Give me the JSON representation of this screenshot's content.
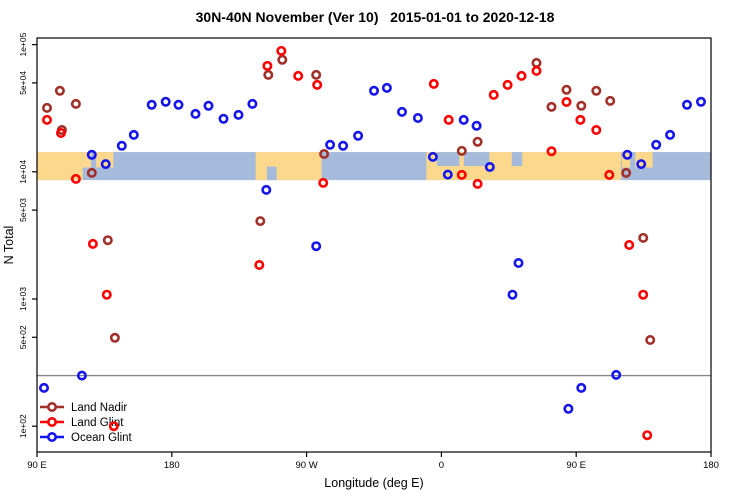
{
  "title": "30N-40N November (Ver 10)   2015-01-01 to 2020-12-18",
  "legend": {
    "items": [
      {
        "label": "Land Nadir",
        "color": "#A03028"
      },
      {
        "label": "Land Glint",
        "color": "#FF0000"
      },
      {
        "label": "Ocean Glint",
        "color": "#1414EE"
      }
    ]
  },
  "chart_data": {
    "type": "scatter",
    "title": "30N-40N November (Ver 10)   2015-01-01 to 2020-12-18",
    "xlabel": "Longitude (deg E)",
    "ylabel": "N Total",
    "grid": false,
    "legend_position": "bottom-left",
    "marker": "open-circle",
    "x_axis": {
      "range": [
        90,
        540
      ],
      "ticks": [
        90,
        180,
        270,
        360,
        450,
        540
      ],
      "tick_labels": [
        "90 E",
        "180",
        "90 W",
        "0",
        "90 E",
        "180"
      ]
    },
    "y_axis": {
      "scale": "log",
      "range": [
        63,
        113000
      ],
      "ticks": [
        100000,
        50000,
        10000,
        5000,
        1000,
        500,
        100
      ],
      "tick_labels": [
        "1e+05",
        "5e+04",
        "1e+04",
        "5e+03",
        "1e+03",
        "5e+02",
        "1e+02"
      ]
    },
    "reference_line": {
      "value": 250,
      "color": "#858585"
    },
    "map_strip": {
      "ocean_color": "#A6BBDB",
      "land_color": "#FBD88C",
      "value_band": [
        8600,
        14300
      ],
      "land_segments": [
        {
          "from": 90,
          "to": 120.5,
          "extent": "full"
        },
        {
          "from": 120.5,
          "to": 126,
          "extent": "top"
        },
        {
          "from": 129.5,
          "to": 141,
          "extent": "top"
        },
        {
          "from": 236,
          "to": 280,
          "extent": "full"
        },
        {
          "from": 350,
          "to": 480,
          "extent": "full"
        },
        {
          "from": 480.5,
          "to": 486,
          "extent": "top"
        },
        {
          "from": 489.5,
          "to": 501,
          "extent": "top"
        }
      ],
      "ocean_cutouts": [
        {
          "from": 357,
          "to": 372,
          "pos": "top"
        },
        {
          "from": 375,
          "to": 392,
          "pos": "top"
        },
        {
          "from": 407,
          "to": 414,
          "pos": "top"
        },
        {
          "from": 243.5,
          "to": 250,
          "pos": "bottom"
        }
      ]
    },
    "series": [
      {
        "name": "Land Nadir",
        "color": "#A03028",
        "points": [
          [
            96.7,
            31800
          ],
          [
            105.3,
            43300
          ],
          [
            106.6,
            21300
          ],
          [
            116,
            34200
          ],
          [
            126.6,
            9800
          ],
          [
            137.3,
            2900
          ],
          [
            142,
            495
          ],
          [
            239.1,
            4100
          ],
          [
            244.4,
            57800
          ],
          [
            253.8,
            75900
          ],
          [
            276.4,
            57800
          ],
          [
            281.7,
            13800
          ],
          [
            373.6,
            14600
          ],
          [
            384.2,
            17200
          ],
          [
            423.5,
            71800
          ],
          [
            433.5,
            32400
          ],
          [
            443.5,
            44100
          ],
          [
            453.4,
            33000
          ],
          [
            463.4,
            43300
          ],
          [
            472.7,
            36100
          ],
          [
            483.4,
            9800
          ],
          [
            494.7,
            3020
          ],
          [
            499.4,
            476
          ]
        ]
      },
      {
        "name": "Land Glint",
        "color": "#FF0000",
        "points": [
          [
            96.7,
            25600
          ],
          [
            106,
            20200
          ],
          [
            116,
            8800
          ],
          [
            127.3,
            2710
          ],
          [
            136.6,
            1080
          ],
          [
            141.3,
            100
          ],
          [
            238.4,
            1850
          ],
          [
            243.8,
            68000
          ],
          [
            253.1,
            89300
          ],
          [
            264.4,
            56700
          ],
          [
            277.1,
            48200
          ],
          [
            281.1,
            8180
          ],
          [
            354.9,
            49100
          ],
          [
            364.9,
            25600
          ],
          [
            373.6,
            9460
          ],
          [
            384.2,
            8030
          ],
          [
            394.9,
            40200
          ],
          [
            404.2,
            48200
          ],
          [
            413.5,
            56700
          ],
          [
            423.5,
            62100
          ],
          [
            433.5,
            14500
          ],
          [
            443.5,
            35400
          ],
          [
            452.8,
            25600
          ],
          [
            463.4,
            21300
          ],
          [
            472.1,
            9460
          ],
          [
            485.4,
            2660
          ],
          [
            494.7,
            1080
          ],
          [
            497.4,
            85
          ]
        ]
      },
      {
        "name": "Ocean Glint",
        "color": "#1414EE",
        "points": [
          [
            94.7,
            200
          ],
          [
            120,
            250
          ],
          [
            126.6,
            13600
          ],
          [
            135.9,
            11500
          ],
          [
            146.6,
            16000
          ],
          [
            154.6,
            19500
          ],
          [
            166.6,
            33600
          ],
          [
            175.9,
            35500
          ],
          [
            184.5,
            33600
          ],
          [
            195.8,
            28500
          ],
          [
            204.5,
            33000
          ],
          [
            214.5,
            26100
          ],
          [
            224.5,
            28000
          ],
          [
            233.8,
            34200
          ],
          [
            243.1,
            7200
          ],
          [
            276.4,
            2600
          ],
          [
            285.7,
            16300
          ],
          [
            294.4,
            16000
          ],
          [
            304.4,
            19200
          ],
          [
            315,
            43300
          ],
          [
            323.6,
            45700
          ],
          [
            333.7,
            29600
          ],
          [
            344.3,
            26500
          ],
          [
            354.3,
            13100
          ],
          [
            364.3,
            9500
          ],
          [
            374.9,
            25600
          ],
          [
            383.5,
            23000
          ],
          [
            392.3,
            10900
          ],
          [
            407.5,
            1080
          ],
          [
            411.5,
            1920
          ],
          [
            444.8,
            137
          ],
          [
            453.4,
            200
          ],
          [
            476.7,
            253
          ],
          [
            484.1,
            13600
          ],
          [
            493.4,
            11500
          ],
          [
            503.4,
            16300
          ],
          [
            512.7,
            19500
          ],
          [
            524,
            33600
          ],
          [
            533.3,
            35500
          ]
        ]
      }
    ]
  }
}
